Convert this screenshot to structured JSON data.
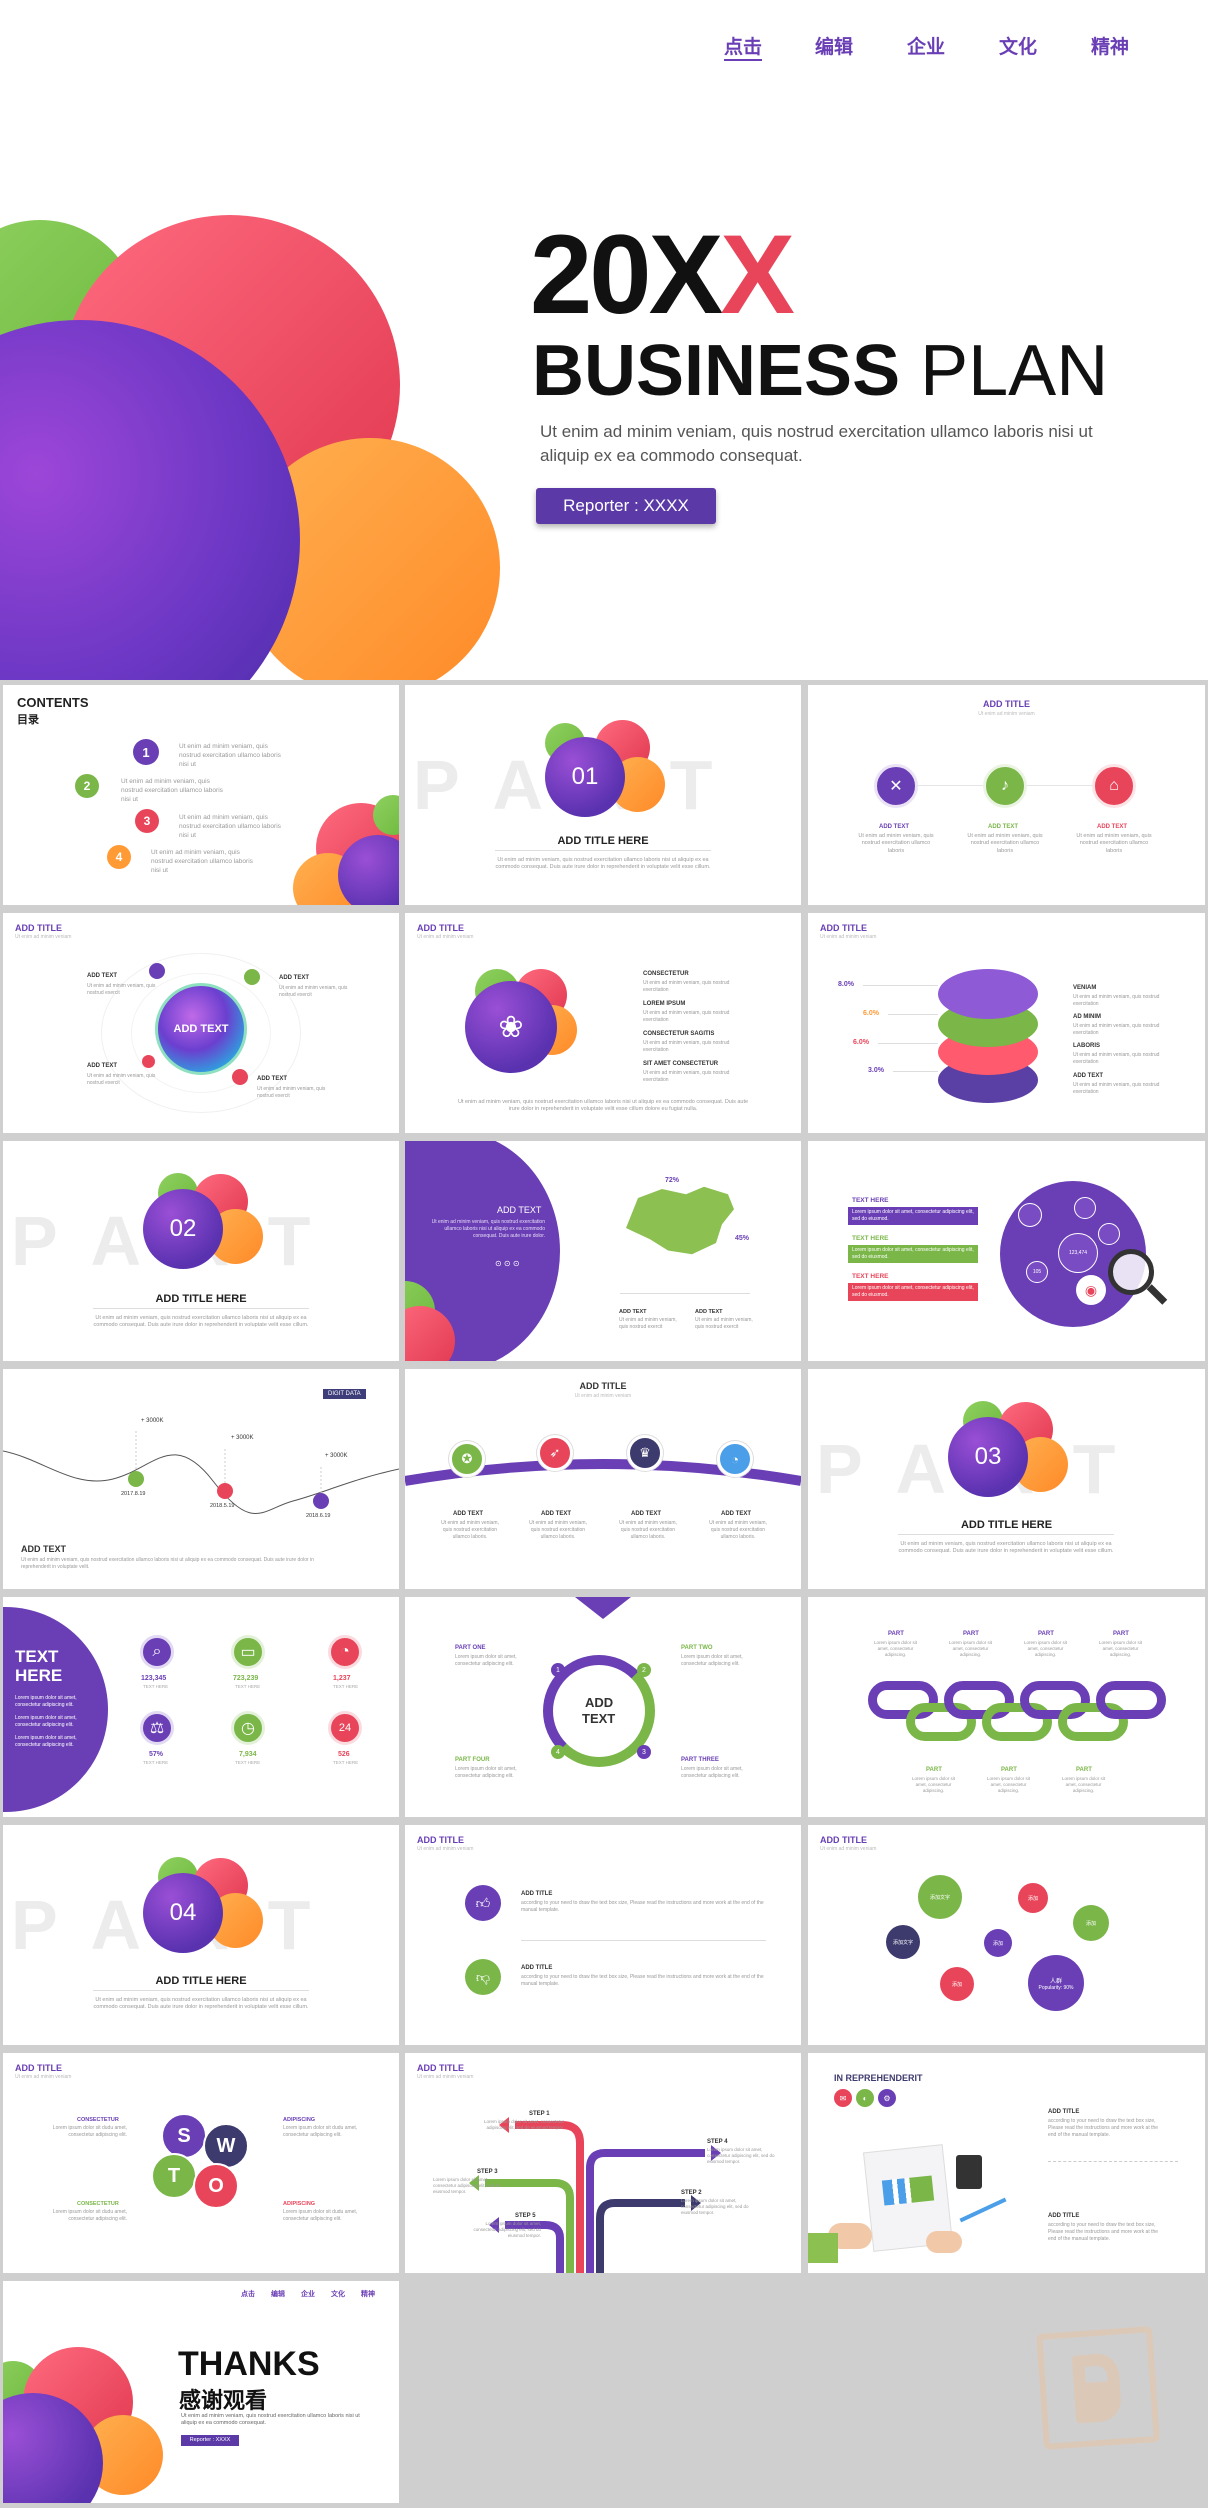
{
  "cover": {
    "nav": [
      "点击",
      "编辑",
      "企业",
      "文化",
      "精神"
    ],
    "year_black": "20X",
    "year_red": "X",
    "title_bold": "BUSINESS",
    "title_light": "PLAN",
    "desc": "Ut enim ad minim veniam, quis nostrud exercitation ullamco laboris nisi ut aliquip ex ea commodo consequat.",
    "reporter": "Reporter : XXXX"
  },
  "contents": {
    "title": "CONTENTS",
    "subtitle": "目录",
    "nums": [
      "1",
      "2",
      "3",
      "4"
    ],
    "text": "Ut enim ad minim veniam, quis nostrud exercitation ullamco laboris nisi ut"
  },
  "part1": {
    "bg": "PART 01",
    "num": "01",
    "title": "ADD TITLE HERE",
    "desc": "Ut enim ad minim veniam, quis nostrud exercitation ullamco laboris nisi ut aliquip ex ea commodo consequat. Duis aute irure dolor in reprehenderit in voluptate velit esse cillum."
  },
  "s3": {
    "title": "ADD TITLE",
    "sub": "Ut enim ad minim veniam",
    "labels": [
      "ADD TEXT",
      "ADD TEXT",
      "ADD TEXT"
    ],
    "text": "Ut enim ad minim veniam, quis nostrud exercitation ullamco laboris"
  },
  "s4": {
    "title": "ADD TITLE",
    "sub": "Ut enim ad minim veniam",
    "center": "ADD TEXT",
    "labels": [
      "ADD TEXT",
      "ADD TEXT",
      "ADD TEXT",
      "ADD TEXT"
    ],
    "text": "Ut enim ad minim veniam, quis nostrud exercit"
  },
  "s5": {
    "title": "ADD TITLE",
    "sub": "Ut enim ad minim veniam",
    "items": [
      "CONSECTETUR",
      "LOREM IPSUM",
      "CONSECTETUR SAGITIS",
      "SIT AMET CONSECTETUR"
    ],
    "text": "Ut enim ad minim veniam, quis nostrud exercitation",
    "desc": "Ut enim ad minim veniam, quis nostrud exercitation ullamco laboris nisi ut aliquip ex ea commodo consequat. Duis aute irure dolor in reprehenderit in voluptate velit esse cillum dolore eu fugiat nulla."
  },
  "s6": {
    "title": "ADD TITLE",
    "sub": "Ut enim ad minim veniam",
    "pcts": [
      "8.0%",
      "6.0%",
      "6.0%",
      "3.0%"
    ],
    "labels": [
      "VENIAM",
      "AD MINIM",
      "LABORIS",
      "ADD TEXT"
    ],
    "text": "Ut enim ad minim veniam, quis nostrud exercitation"
  },
  "part2": {
    "bg": "PART 02",
    "num": "02",
    "title": "ADD TITLE HERE",
    "desc": "Ut enim ad minim veniam, quis nostrud exercitation ullamco laboris nisi ut aliquip ex ea commodo consequat. Duis aute irure dolor in reprehenderit in voluptate velit esse cillum."
  },
  "s8": {
    "title": "ADD TEXT",
    "text": "Ut enim ad minim veniam, quis nostrud exercitation ullamco laboris nisi ut aliquip ex ea commodo consequat. Duis aute irure dolor.",
    "pct1": "72%",
    "pct2": "45%",
    "labels": [
      "ADD TEXT",
      "ADD TEXT"
    ],
    "small": "Ut enim ad minim veniam, quis nostrud exercit"
  },
  "s9": {
    "labels": [
      "TEXT HERE",
      "TEXT HERE",
      "TEXT HERE"
    ],
    "text": "Lorem ipsum dolor sit amet, consectetur adipiscing elit, sed do eiusmod.",
    "nodes": [
      "123,474",
      "105"
    ]
  },
  "s10": {
    "badge": "DIGIT DATA",
    "values": [
      "+ 3000K",
      "+ 3000K",
      "+ 3000K"
    ],
    "dates": [
      "2017.8.19",
      "2018.5.19",
      "2018.6.19"
    ],
    "title": "ADD TEXT",
    "desc": "Ut enim ad minim veniam, quis nostrud exercitation ullamco laboris nisi ut aliquip ex ea commodo consequat. Duis aute irure dolor in reprehenderit in voluptate velit."
  },
  "s11": {
    "title": "ADD TITLE",
    "sub": "Ut enim ad minim veniam",
    "labels": [
      "ADD TEXT",
      "ADD TEXT",
      "ADD TEXT",
      "ADD TEXT"
    ],
    "text": "Ut enim ad minim veniam, quis nostrud exercitation ullamco laboris."
  },
  "part3": {
    "bg": "PART 03",
    "num": "03",
    "title": "ADD TITLE HERE",
    "desc": "Ut enim ad minim veniam, quis nostrud exercitation ullamco laboris nisi ut aliquip ex ea commodo consequat. Duis aute irure dolor in reprehenderit in voluptate velit esse cillum."
  },
  "s13": {
    "title1": "TEXT",
    "title2": "HERE",
    "bullets": [
      "Lorem ipsum dolor sit amet, consectetur adipiscing elit.",
      "Lorem ipsum dolor sit amet, consectetur adipiscing elit.",
      "Lorem ipsum dolor sit amet, consectetur adipiscing elit."
    ],
    "stats": [
      "123,345",
      "723,239",
      "1,237",
      "57%",
      "7,934",
      "526"
    ],
    "stat_label": "TEXT HERE"
  },
  "s14": {
    "center1": "ADD",
    "center2": "TEXT",
    "parts": [
      "PART ONE",
      "PART TWO",
      "PART THREE",
      "PART FOUR"
    ],
    "nums": [
      "1",
      "2",
      "3",
      "4"
    ],
    "text": "Lorem ipsum dolor sit amet, consectetur adipiscing elit."
  },
  "s15": {
    "parts": [
      "PART",
      "PART",
      "PART",
      "PART",
      "PART",
      "PART",
      "PART"
    ],
    "text": "Lorem ipsum dolor sit amet, consectetur adipiscing."
  },
  "part4": {
    "bg": "PART 04",
    "num": "04",
    "title": "ADD TITLE HERE",
    "desc": "Ut enim ad minim veniam, quis nostrud exercitation ullamco laboris nisi ut aliquip ex ea commodo consequat. Duis aute irure dolor in reprehenderit in voluptate velit esse cillum."
  },
  "s17": {
    "title": "ADD TITLE",
    "sub": "Ut enim ad minim veniam",
    "items": [
      "ADD TITLE",
      "ADD TITLE"
    ],
    "text": "according to your need to draw the text box size, Please read the instructions and more work at the end of the manual template."
  },
  "s18": {
    "title": "ADD TITLE",
    "sub": "Ut enim ad minim veniam",
    "bubbles": [
      "添加文字",
      "添加",
      "添加",
      "添加文字",
      "添加",
      "添加",
      "人群"
    ],
    "pop": "Popularity: 90%"
  },
  "s19": {
    "title": "ADD TITLE",
    "sub": "Ut enim ad minim veniam",
    "letters": [
      "S",
      "W",
      "T",
      "O"
    ],
    "labels": [
      "CONSECTETUR",
      "ADIPISCING",
      "CONSECTETUR",
      "ADIPISCING"
    ],
    "text": "Lorem ipsum dolor sit dudu amet, consectetur adipiscing elit."
  },
  "s20": {
    "title": "ADD TITLE",
    "sub": "Ut enim ad minim veniam",
    "steps": [
      "STEP 1",
      "STEP 2",
      "STEP 3",
      "STEP 4",
      "STEP 5"
    ],
    "text": "Lorem ipsum dolor sit amet, consectetur adipiscing elit, sed do eiusmod tempor."
  },
  "s21": {
    "title": "IN REPREHENDERIT",
    "items": [
      "ADD TITLE",
      "ADD TITLE"
    ],
    "text": "according to your need to draw the text box size, Please read the instructions and more work at the end of the manual template."
  },
  "thanks": {
    "nav": [
      "点击",
      "编辑",
      "企业",
      "文化",
      "精神"
    ],
    "title": "THANKS",
    "cn": "感谢观看",
    "desc": "Ut enim ad minim veniam, quis nostrud exercitation ullamco laboris nisi ut aliquip ex ea commodo consequat.",
    "reporter": "Reporter : XXXX"
  },
  "colors": {
    "purple": "#6a3fb5",
    "red": "#e8455a",
    "orange": "#ff9a35",
    "green": "#7ab648",
    "blue": "#4a9fe8"
  }
}
